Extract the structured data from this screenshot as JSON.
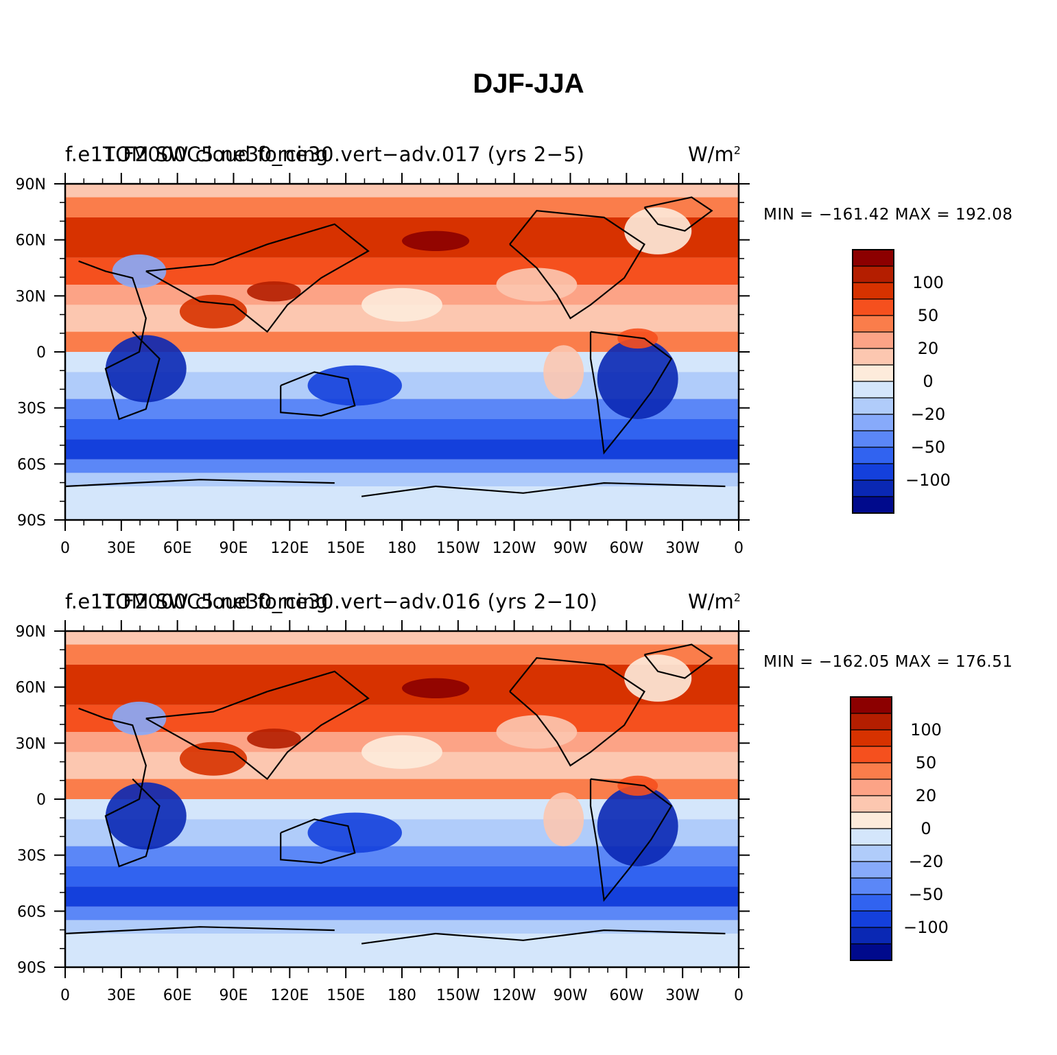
{
  "title": "DJF-JJA",
  "lat_ticks": [
    "90N",
    "60N",
    "30N",
    "0",
    "30S",
    "60S",
    "90S"
  ],
  "lon_ticks": [
    "0",
    "30E",
    "60E",
    "90E",
    "120E",
    "150E",
    "180",
    "150W",
    "120W",
    "90W",
    "60W",
    "30W",
    "0"
  ],
  "colorbar_labels": [
    "100",
    "50",
    "20",
    "0",
    "−20",
    "−50",
    "−100"
  ],
  "colorbar_colors": [
    "#8c0000",
    "#b41e00",
    "#d73200",
    "#f5501e",
    "#fa7d4b",
    "#fca386",
    "#fcc7b0",
    "#fdebdb",
    "#d4e6fb",
    "#b0ccfa",
    "#87aafa",
    "#5b87f7",
    "#3163f0",
    "#1440dc",
    "#0a28b4",
    "#000a8c"
  ],
  "panels": [
    {
      "case_title": "f.e11.F2000C5.ne30_ne30.vert−adv.017 (yrs 2−5)",
      "var_title": "TOM SW cloud forcing",
      "units": "W/m",
      "units_exp": "2",
      "stats": "MIN = −161.42  MAX = 192.08"
    },
    {
      "case_title": "f.e11.F2000C5.ne30_ne30.vert−adv.016 (yrs 2−10)",
      "var_title": "TOM SW cloud forcing",
      "units": "W/m",
      "units_exp": "2",
      "stats": "MIN = −162.05  MAX = 176.51"
    }
  ]
}
